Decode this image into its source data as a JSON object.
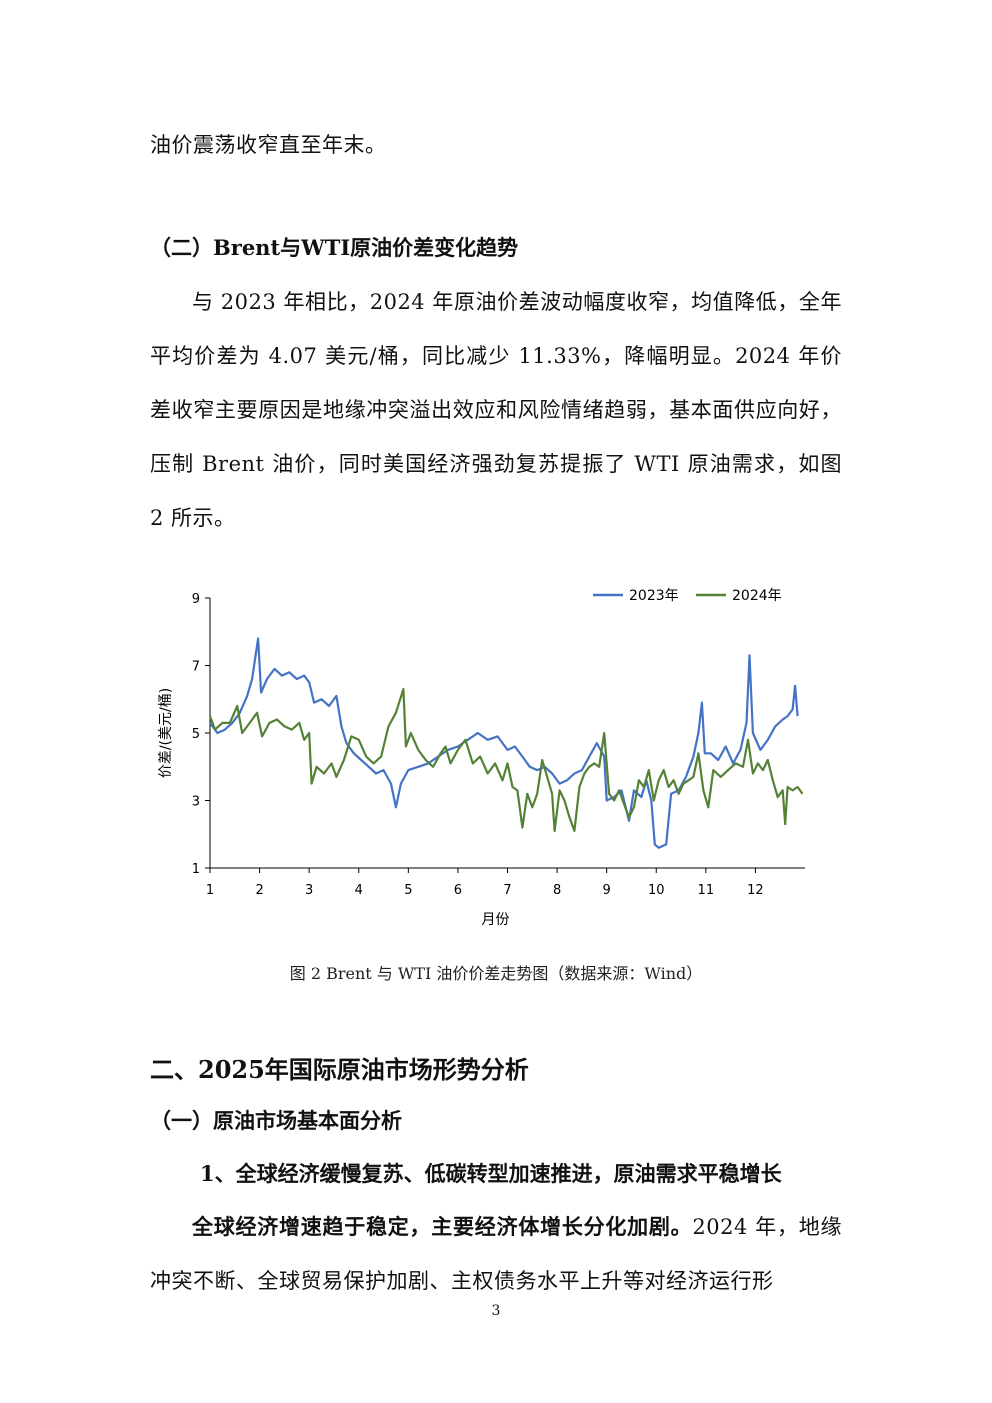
{
  "text": {
    "p_intro": "油价震荡收窄直至年末。",
    "h_section_2": "（二）Brent与WTI原油价差变化趋势",
    "p_spread": "与 2023 年相比，2024 年原油价差波动幅度收窄，均值降低，全年平均价差为 4.07 美元/桶，同比减少 11.33%，降幅明显。2024 年价差收窄主要原因是地缘冲突溢出效应和风险情绪趋弱，基本面供应向好，压制 Brent 油价，同时美国经济强劲复苏提振了 WTI 原油需求，如图 2 所示。",
    "caption": "图 2 Brent 与 WTI 油价价差走势图（数据来源：Wind）",
    "h_part_2": "二、2025年国际原油市场形势分析",
    "h_sub_1": "（一）原油市场基本面分析",
    "h_item_1": "1、全球经济缓慢复苏、低碳转型加速推进，原油需求平稳增长",
    "p_last_bold": "全球经济增速趋于稳定，主要经济体增长分化加剧。",
    "p_last_rest": "2024 年，地缘冲突不断、全球贸易保护加剧、主权债务水平上升等对经济运行形",
    "page_number": "3"
  },
  "chart_data": {
    "type": "line",
    "ylabel": "价差/(美元/桶)",
    "xlabel": "月份",
    "ylim": [
      1,
      9
    ],
    "yticks": [
      1,
      3,
      5,
      7,
      9
    ],
    "xlim": [
      1,
      13
    ],
    "xticks": [
      "1",
      "2",
      "3",
      "4",
      "5",
      "6",
      "7",
      "8",
      "9",
      "10",
      "11",
      "12"
    ],
    "legend_position": "top-right",
    "series": [
      {
        "name": "2023年",
        "color": "#4472C4",
        "points": [
          [
            1.0,
            5.3
          ],
          [
            1.15,
            5.0
          ],
          [
            1.3,
            5.1
          ],
          [
            1.45,
            5.3
          ],
          [
            1.6,
            5.6
          ],
          [
            1.75,
            6.1
          ],
          [
            1.85,
            6.6
          ],
          [
            1.92,
            7.3
          ],
          [
            1.97,
            7.8
          ],
          [
            2.03,
            6.2
          ],
          [
            2.15,
            6.6
          ],
          [
            2.3,
            6.9
          ],
          [
            2.45,
            6.7
          ],
          [
            2.6,
            6.8
          ],
          [
            2.75,
            6.6
          ],
          [
            2.9,
            6.7
          ],
          [
            3.0,
            6.5
          ],
          [
            3.1,
            5.9
          ],
          [
            3.25,
            6.0
          ],
          [
            3.4,
            5.8
          ],
          [
            3.55,
            6.1
          ],
          [
            3.65,
            5.2
          ],
          [
            3.75,
            4.7
          ],
          [
            3.9,
            4.4
          ],
          [
            4.05,
            4.2
          ],
          [
            4.2,
            4.0
          ],
          [
            4.35,
            3.8
          ],
          [
            4.5,
            3.9
          ],
          [
            4.65,
            3.5
          ],
          [
            4.75,
            2.8
          ],
          [
            4.85,
            3.5
          ],
          [
            5.0,
            3.9
          ],
          [
            5.2,
            4.0
          ],
          [
            5.4,
            4.1
          ],
          [
            5.6,
            4.3
          ],
          [
            5.8,
            4.5
          ],
          [
            6.0,
            4.6
          ],
          [
            6.2,
            4.8
          ],
          [
            6.4,
            5.0
          ],
          [
            6.6,
            4.8
          ],
          [
            6.8,
            4.9
          ],
          [
            7.0,
            4.5
          ],
          [
            7.15,
            4.6
          ],
          [
            7.3,
            4.3
          ],
          [
            7.45,
            4.0
          ],
          [
            7.6,
            3.9
          ],
          [
            7.75,
            4.0
          ],
          [
            7.9,
            3.8
          ],
          [
            8.05,
            3.5
          ],
          [
            8.2,
            3.6
          ],
          [
            8.35,
            3.8
          ],
          [
            8.5,
            3.9
          ],
          [
            8.65,
            4.3
          ],
          [
            8.8,
            4.7
          ],
          [
            8.95,
            4.3
          ],
          [
            9.0,
            3.0
          ],
          [
            9.15,
            3.1
          ],
          [
            9.3,
            3.3
          ],
          [
            9.45,
            2.4
          ],
          [
            9.55,
            3.3
          ],
          [
            9.7,
            3.1
          ],
          [
            9.8,
            3.6
          ],
          [
            9.9,
            3.0
          ],
          [
            9.97,
            1.7
          ],
          [
            10.05,
            1.6
          ],
          [
            10.2,
            1.7
          ],
          [
            10.3,
            3.2
          ],
          [
            10.45,
            3.3
          ],
          [
            10.6,
            3.7
          ],
          [
            10.75,
            4.3
          ],
          [
            10.85,
            5.0
          ],
          [
            10.92,
            5.9
          ],
          [
            10.98,
            4.4
          ],
          [
            11.1,
            4.4
          ],
          [
            11.25,
            4.2
          ],
          [
            11.4,
            4.6
          ],
          [
            11.55,
            4.1
          ],
          [
            11.7,
            4.5
          ],
          [
            11.82,
            5.3
          ],
          [
            11.88,
            7.3
          ],
          [
            11.95,
            5.0
          ],
          [
            12.1,
            4.5
          ],
          [
            12.25,
            4.8
          ],
          [
            12.4,
            5.2
          ],
          [
            12.55,
            5.4
          ],
          [
            12.65,
            5.5
          ],
          [
            12.75,
            5.7
          ],
          [
            12.8,
            6.4
          ],
          [
            12.85,
            5.5
          ]
        ]
      },
      {
        "name": "2024年",
        "color": "#548235",
        "points": [
          [
            1.0,
            5.5
          ],
          [
            1.1,
            5.1
          ],
          [
            1.25,
            5.3
          ],
          [
            1.4,
            5.3
          ],
          [
            1.55,
            5.8
          ],
          [
            1.65,
            5.0
          ],
          [
            1.8,
            5.3
          ],
          [
            1.95,
            5.6
          ],
          [
            2.05,
            4.9
          ],
          [
            2.2,
            5.3
          ],
          [
            2.35,
            5.4
          ],
          [
            2.5,
            5.2
          ],
          [
            2.65,
            5.1
          ],
          [
            2.8,
            5.3
          ],
          [
            2.9,
            4.8
          ],
          [
            3.0,
            5.0
          ],
          [
            3.05,
            3.5
          ],
          [
            3.15,
            4.0
          ],
          [
            3.3,
            3.8
          ],
          [
            3.45,
            4.1
          ],
          [
            3.55,
            3.7
          ],
          [
            3.7,
            4.2
          ],
          [
            3.85,
            4.9
          ],
          [
            4.0,
            4.8
          ],
          [
            4.15,
            4.3
          ],
          [
            4.3,
            4.1
          ],
          [
            4.45,
            4.3
          ],
          [
            4.6,
            5.2
          ],
          [
            4.75,
            5.6
          ],
          [
            4.9,
            6.3
          ],
          [
            4.95,
            4.6
          ],
          [
            5.05,
            5.0
          ],
          [
            5.2,
            4.5
          ],
          [
            5.35,
            4.2
          ],
          [
            5.5,
            4.0
          ],
          [
            5.65,
            4.4
          ],
          [
            5.75,
            4.6
          ],
          [
            5.85,
            4.1
          ],
          [
            6.0,
            4.5
          ],
          [
            6.15,
            4.8
          ],
          [
            6.3,
            4.1
          ],
          [
            6.45,
            4.3
          ],
          [
            6.6,
            3.8
          ],
          [
            6.75,
            4.1
          ],
          [
            6.9,
            3.6
          ],
          [
            7.0,
            4.1
          ],
          [
            7.1,
            3.4
          ],
          [
            7.2,
            3.3
          ],
          [
            7.3,
            2.2
          ],
          [
            7.4,
            3.2
          ],
          [
            7.5,
            2.8
          ],
          [
            7.6,
            3.2
          ],
          [
            7.7,
            4.2
          ],
          [
            7.8,
            3.7
          ],
          [
            7.9,
            3.2
          ],
          [
            7.95,
            2.1
          ],
          [
            8.05,
            3.3
          ],
          [
            8.15,
            3.0
          ],
          [
            8.25,
            2.5
          ],
          [
            8.35,
            2.1
          ],
          [
            8.45,
            3.4
          ],
          [
            8.55,
            3.8
          ],
          [
            8.65,
            4.0
          ],
          [
            8.75,
            4.1
          ],
          [
            8.85,
            4.0
          ],
          [
            8.95,
            5.0
          ],
          [
            9.05,
            3.2
          ],
          [
            9.15,
            3.0
          ],
          [
            9.25,
            3.3
          ],
          [
            9.35,
            2.9
          ],
          [
            9.45,
            2.5
          ],
          [
            9.55,
            2.8
          ],
          [
            9.65,
            3.6
          ],
          [
            9.75,
            3.4
          ],
          [
            9.85,
            3.9
          ],
          [
            9.95,
            3.0
          ],
          [
            10.05,
            3.6
          ],
          [
            10.15,
            3.9
          ],
          [
            10.25,
            3.4
          ],
          [
            10.35,
            3.6
          ],
          [
            10.45,
            3.2
          ],
          [
            10.55,
            3.5
          ],
          [
            10.65,
            3.6
          ],
          [
            10.75,
            3.7
          ],
          [
            10.85,
            4.4
          ],
          [
            10.95,
            3.3
          ],
          [
            11.05,
            2.8
          ],
          [
            11.15,
            3.9
          ],
          [
            11.3,
            3.7
          ],
          [
            11.45,
            3.9
          ],
          [
            11.6,
            4.1
          ],
          [
            11.75,
            4.0
          ],
          [
            11.85,
            4.8
          ],
          [
            11.95,
            3.8
          ],
          [
            12.05,
            4.1
          ],
          [
            12.15,
            3.9
          ],
          [
            12.25,
            4.2
          ],
          [
            12.35,
            3.6
          ],
          [
            12.45,
            3.1
          ],
          [
            12.55,
            3.3
          ],
          [
            12.6,
            2.3
          ],
          [
            12.65,
            3.4
          ],
          [
            12.75,
            3.3
          ],
          [
            12.85,
            3.4
          ],
          [
            12.95,
            3.2
          ]
        ]
      }
    ]
  }
}
